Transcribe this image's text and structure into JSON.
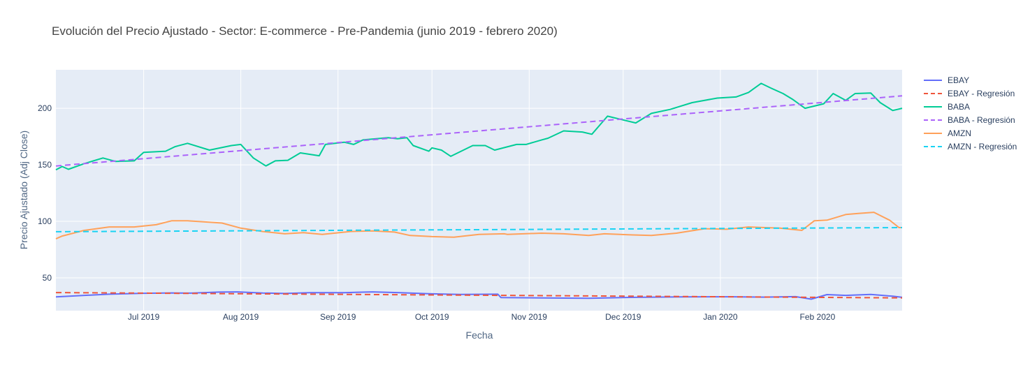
{
  "chart_data": {
    "type": "line",
    "title": "Evolución del Precio Ajustado - Sector: E-commerce - Pre-Pandemia (junio 2019 - febrero 2020)",
    "xlabel": "Fecha",
    "ylabel": "Precio Ajustado (Adj Close)",
    "x_range": [
      "2019-06-03",
      "2020-02-28"
    ],
    "ylim": [
      21,
      234
    ],
    "x_ticks": [
      {
        "date": "2019-07-01",
        "label": "Jul 2019"
      },
      {
        "date": "2019-08-01",
        "label": "Aug 2019"
      },
      {
        "date": "2019-09-01",
        "label": "Sep 2019"
      },
      {
        "date": "2019-10-01",
        "label": "Oct 2019"
      },
      {
        "date": "2019-11-01",
        "label": "Nov 2019"
      },
      {
        "date": "2019-12-01",
        "label": "Dec 2019"
      },
      {
        "date": "2020-01-01",
        "label": "Jan 2020"
      },
      {
        "date": "2020-02-01",
        "label": "Feb 2020"
      }
    ],
    "y_ticks": [
      50,
      100,
      150,
      200
    ],
    "grid": true,
    "legend_position": "right",
    "background_color": "#e5ecf6",
    "series": [
      {
        "name": "EBAY",
        "color": "#636efa",
        "dash": "solid",
        "points": [
          [
            "2019-06-03",
            33.2
          ],
          [
            "2019-06-10",
            34.2
          ],
          [
            "2019-06-20",
            35.6
          ],
          [
            "2019-07-01",
            36.4
          ],
          [
            "2019-07-10",
            36.7
          ],
          [
            "2019-07-16",
            36.5
          ],
          [
            "2019-07-25",
            37.4
          ],
          [
            "2019-07-31",
            37.6
          ],
          [
            "2019-08-08",
            36.6
          ],
          [
            "2019-08-15",
            36.2
          ],
          [
            "2019-08-23",
            36.9
          ],
          [
            "2019-09-03",
            36.9
          ],
          [
            "2019-09-12",
            37.6
          ],
          [
            "2019-09-20",
            37.0
          ],
          [
            "2019-09-30",
            36.0
          ],
          [
            "2019-10-10",
            35.3
          ],
          [
            "2019-10-22",
            35.6
          ],
          [
            "2019-10-23",
            32.6
          ],
          [
            "2019-11-05",
            32.3
          ],
          [
            "2019-11-20",
            32.0
          ],
          [
            "2019-12-05",
            32.8
          ],
          [
            "2019-12-20",
            33.2
          ],
          [
            "2020-01-05",
            33.3
          ],
          [
            "2020-01-15",
            33.0
          ],
          [
            "2020-01-25",
            33.4
          ],
          [
            "2020-01-30",
            31.2
          ],
          [
            "2020-02-04",
            35.2
          ],
          [
            "2020-02-10",
            34.5
          ],
          [
            "2020-02-18",
            35.3
          ],
          [
            "2020-02-25",
            33.8
          ],
          [
            "2020-02-28",
            32.8
          ]
        ]
      },
      {
        "name": "EBAY - Regresión",
        "color": "#ef553b",
        "dash": "dashed",
        "points": [
          [
            "2019-06-03",
            37.0
          ],
          [
            "2020-02-28",
            32.3
          ]
        ]
      },
      {
        "name": "BABA",
        "color": "#00cc96",
        "dash": "solid",
        "points": [
          [
            "2019-06-03",
            145.5
          ],
          [
            "2019-06-05",
            148.5
          ],
          [
            "2019-06-07",
            146.0
          ],
          [
            "2019-06-12",
            151.0
          ],
          [
            "2019-06-18",
            156.0
          ],
          [
            "2019-06-22",
            153.0
          ],
          [
            "2019-06-28",
            153.5
          ],
          [
            "2019-07-01",
            161.0
          ],
          [
            "2019-07-08",
            162.0
          ],
          [
            "2019-07-11",
            166.0
          ],
          [
            "2019-07-15",
            169.0
          ],
          [
            "2019-07-22",
            163.0
          ],
          [
            "2019-07-29",
            167.0
          ],
          [
            "2019-08-01",
            168.0
          ],
          [
            "2019-08-05",
            156.0
          ],
          [
            "2019-08-09",
            149.0
          ],
          [
            "2019-08-12",
            153.5
          ],
          [
            "2019-08-16",
            154.0
          ],
          [
            "2019-08-20",
            160.5
          ],
          [
            "2019-08-26",
            158.0
          ],
          [
            "2019-08-28",
            168.0
          ],
          [
            "2019-09-03",
            170.0
          ],
          [
            "2019-09-06",
            168.0
          ],
          [
            "2019-09-09",
            172.0
          ],
          [
            "2019-09-17",
            174.0
          ],
          [
            "2019-09-20",
            173.0
          ],
          [
            "2019-09-23",
            174.0
          ],
          [
            "2019-09-25",
            167.0
          ],
          [
            "2019-09-30",
            162.0
          ],
          [
            "2019-10-01",
            165.0
          ],
          [
            "2019-10-04",
            163.0
          ],
          [
            "2019-10-07",
            157.5
          ],
          [
            "2019-10-14",
            167.0
          ],
          [
            "2019-10-18",
            167.0
          ],
          [
            "2019-10-21",
            163.0
          ],
          [
            "2019-10-28",
            168.0
          ],
          [
            "2019-10-31",
            168.0
          ],
          [
            "2019-11-05",
            172.0
          ],
          [
            "2019-11-07",
            173.5
          ],
          [
            "2019-11-12",
            180.0
          ],
          [
            "2019-11-18",
            179.0
          ],
          [
            "2019-11-21",
            177.0
          ],
          [
            "2019-11-26",
            193.0
          ],
          [
            "2019-12-05",
            187.0
          ],
          [
            "2019-12-10",
            195.5
          ],
          [
            "2019-12-16",
            199.0
          ],
          [
            "2019-12-23",
            205.0
          ],
          [
            "2019-12-31",
            209.0
          ],
          [
            "2020-01-06",
            210.0
          ],
          [
            "2020-01-10",
            214.0
          ],
          [
            "2020-01-14",
            222.0
          ],
          [
            "2020-01-17",
            218.0
          ],
          [
            "2020-01-21",
            213.0
          ],
          [
            "2020-01-24",
            208.0
          ],
          [
            "2020-01-28",
            200.0
          ],
          [
            "2020-02-03",
            204.0
          ],
          [
            "2020-02-06",
            213.0
          ],
          [
            "2020-02-10",
            207.0
          ],
          [
            "2020-02-13",
            213.0
          ],
          [
            "2020-02-18",
            213.5
          ],
          [
            "2020-02-21",
            205.0
          ],
          [
            "2020-02-25",
            198.0
          ],
          [
            "2020-02-28",
            200.0
          ]
        ]
      },
      {
        "name": "BABA - Regresión",
        "color": "#ab63fa",
        "dash": "dashed",
        "points": [
          [
            "2019-06-03",
            149.0
          ],
          [
            "2020-02-28",
            211.0
          ]
        ]
      },
      {
        "name": "AMZN",
        "color": "#ffa15a",
        "dash": "solid",
        "points": [
          [
            "2019-06-03",
            84.5
          ],
          [
            "2019-06-05",
            87.0
          ],
          [
            "2019-06-12",
            92.0
          ],
          [
            "2019-06-20",
            95.0
          ],
          [
            "2019-06-28",
            95.0
          ],
          [
            "2019-07-05",
            97.0
          ],
          [
            "2019-07-10",
            100.5
          ],
          [
            "2019-07-15",
            100.5
          ],
          [
            "2019-07-26",
            98.5
          ],
          [
            "2019-08-01",
            94.0
          ],
          [
            "2019-08-08",
            91.0
          ],
          [
            "2019-08-15",
            89.0
          ],
          [
            "2019-08-21",
            90.0
          ],
          [
            "2019-08-27",
            88.5
          ],
          [
            "2019-09-05",
            91.0
          ],
          [
            "2019-09-12",
            91.5
          ],
          [
            "2019-09-19",
            90.5
          ],
          [
            "2019-09-24",
            87.5
          ],
          [
            "2019-10-01",
            86.5
          ],
          [
            "2019-10-08",
            86.0
          ],
          [
            "2019-10-16",
            88.5
          ],
          [
            "2019-10-24",
            89.0
          ],
          [
            "2019-10-25",
            88.5
          ],
          [
            "2019-11-05",
            89.5
          ],
          [
            "2019-11-12",
            89.0
          ],
          [
            "2019-11-20",
            87.5
          ],
          [
            "2019-11-25",
            89.0
          ],
          [
            "2019-12-04",
            88.0
          ],
          [
            "2019-12-10",
            87.5
          ],
          [
            "2019-12-18",
            89.5
          ],
          [
            "2019-12-27",
            93.5
          ],
          [
            "2020-01-03",
            93.0
          ],
          [
            "2020-01-10",
            95.0
          ],
          [
            "2020-01-20",
            94.0
          ],
          [
            "2020-01-27",
            92.0
          ],
          [
            "2020-01-31",
            100.5
          ],
          [
            "2020-02-04",
            101.0
          ],
          [
            "2020-02-10",
            106.0
          ],
          [
            "2020-02-14",
            107.0
          ],
          [
            "2020-02-19",
            108.0
          ],
          [
            "2020-02-24",
            101.0
          ],
          [
            "2020-02-27",
            94.5
          ],
          [
            "2020-02-28",
            94.5
          ]
        ]
      },
      {
        "name": "AMZN - Regresión",
        "color": "#19d3f3",
        "dash": "dashed",
        "points": [
          [
            "2019-06-03",
            90.8
          ],
          [
            "2020-02-28",
            94.5
          ]
        ]
      }
    ]
  }
}
